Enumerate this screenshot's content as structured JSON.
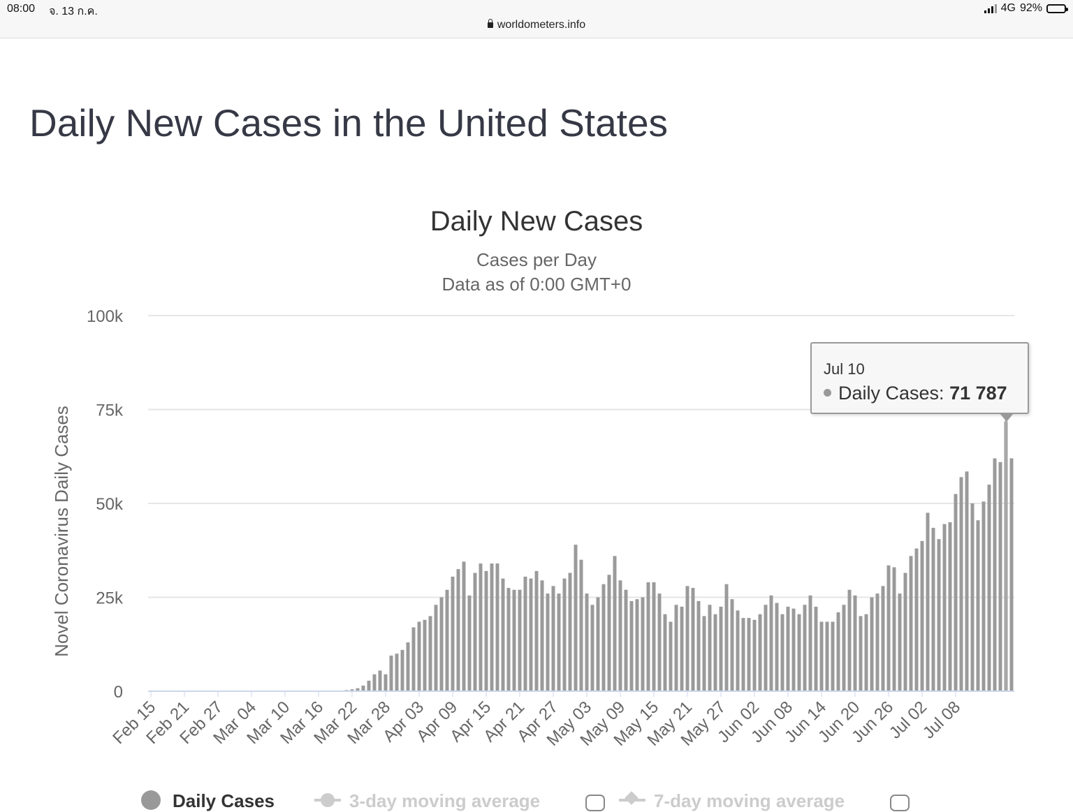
{
  "status_bar": {
    "time": "08:00",
    "date": "จ. 13 ก.ค.",
    "network": "4G",
    "battery": "92%",
    "battery_level": 0.92,
    "url": "worldometers.info"
  },
  "page_title": "Daily New Cases in the United States",
  "colors": {
    "bar": "#9a9a9a",
    "grid": "#e6e6e6",
    "axis": "#ccd6eb",
    "text": "#666666"
  },
  "tooltip": {
    "date": "Jul 10",
    "label": "Daily Cases:",
    "value": "71 787"
  },
  "legend": {
    "items": [
      {
        "label": "Daily Cases",
        "color": "#333333",
        "marker": "circle"
      },
      {
        "label": "3-day moving average",
        "color": "#cccccc",
        "marker": "line-circle"
      },
      {
        "label": "7-day moving average",
        "color": "#cccccc",
        "marker": "line-diamond"
      }
    ]
  },
  "chart_data": {
    "type": "bar",
    "title": "Daily New Cases",
    "subtitle": "Cases per Day",
    "subtitle2": "Data as of 0:00 GMT+0",
    "ylabel": "Novel Coronavirus Daily Cases",
    "xlabel": "",
    "ylim": [
      0,
      100000
    ],
    "y_ticks": [
      0,
      25000,
      50000,
      75000,
      100000
    ],
    "y_tick_labels": [
      "0",
      "25k",
      "50k",
      "75k",
      "100k"
    ],
    "x_tick_labels": [
      "Feb 15",
      "Feb 21",
      "Feb 27",
      "Mar 04",
      "Mar 10",
      "Mar 16",
      "Mar 22",
      "Mar 28",
      "Apr 03",
      "Apr 09",
      "Apr 15",
      "Apr 21",
      "Apr 27",
      "May 03",
      "May 09",
      "May 15",
      "May 21",
      "May 27",
      "Jun 02",
      "Jun 08",
      "Jun 14",
      "Jun 20",
      "Jun 26",
      "Jul 02",
      "Jul 08"
    ],
    "x_tick_every": 6,
    "grid": true,
    "legend_position": "bottom",
    "start_date": "Feb 15",
    "highlight": {
      "date": "Jul 10",
      "value": 71787
    },
    "series": [
      {
        "name": "Daily Cases",
        "values": [
          0,
          0,
          0,
          0,
          0,
          0,
          0,
          0,
          0,
          0,
          0,
          0,
          0,
          0,
          0,
          0,
          0,
          0,
          0,
          0,
          0,
          0,
          0,
          0,
          0,
          0,
          0,
          0,
          0,
          0,
          0,
          0,
          0,
          0,
          0,
          300,
          500,
          800,
          1500,
          2800,
          4500,
          5500,
          4500,
          9500,
          10000,
          11000,
          13000,
          17000,
          18500,
          19000,
          20000,
          23000,
          25000,
          27000,
          30500,
          32500,
          34500,
          25500,
          31500,
          34000,
          32000,
          34000,
          34000,
          30000,
          27500,
          27000,
          27000,
          30500,
          30000,
          32000,
          29500,
          26000,
          28000,
          26000,
          30000,
          31500,
          39000,
          35000,
          26000,
          23000,
          25000,
          28500,
          31000,
          36000,
          29500,
          27000,
          24000,
          24500,
          25000,
          29000,
          29000,
          26000,
          20500,
          18500,
          23000,
          22500,
          28000,
          27500,
          24000,
          20000,
          23000,
          20500,
          22500,
          28500,
          24500,
          21500,
          19500,
          19500,
          19000,
          20500,
          23000,
          25500,
          23500,
          20500,
          22500,
          22000,
          20500,
          23000,
          25500,
          22500,
          18500,
          18500,
          18500,
          21000,
          23000,
          27000,
          25500,
          20000,
          20500,
          25000,
          26000,
          28000,
          33500,
          33000,
          26000,
          31500,
          36000,
          38000,
          40000,
          47500,
          43500,
          40500,
          44500,
          45000,
          52500,
          57000,
          58500,
          50000,
          45500,
          50500,
          55000,
          62000,
          61000,
          71787,
          62000
        ]
      }
    ]
  }
}
